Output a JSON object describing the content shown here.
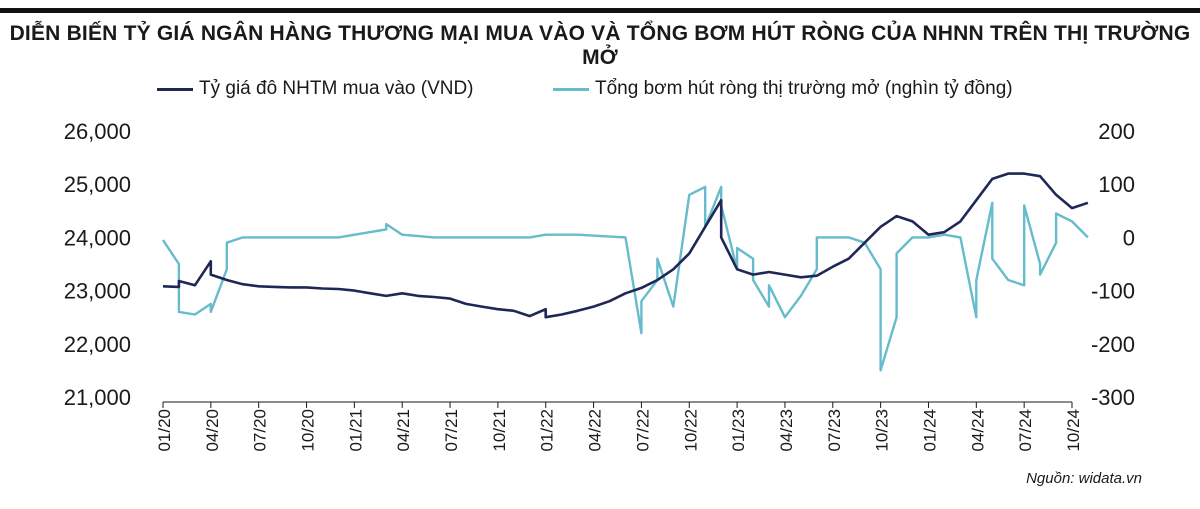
{
  "title": "DIỄN BIẾN TỶ GIÁ NGÂN HÀNG THƯƠNG MẠI MUA VÀO VÀ TỔNG BƠM HÚT RÒNG CỦA NHNN TRÊN THỊ TRƯỜNG MỞ",
  "source": "Nguồn: widata.vn",
  "colors": {
    "usd_rate": "#1f2855",
    "net_injection": "#66bccc",
    "topbar": "#111111"
  },
  "chart_data": {
    "type": "line",
    "legend_position": "top",
    "grid": false,
    "x_ticks": [
      "01/20",
      "04/20",
      "07/20",
      "10/20",
      "01/21",
      "04/21",
      "07/21",
      "10/21",
      "01/22",
      "04/22",
      "07/22",
      "10/22",
      "01/23",
      "04/23",
      "07/23",
      "10/23",
      "01/24",
      "04/24",
      "07/24",
      "10/24"
    ],
    "y_left": {
      "ticks": [
        "26,000",
        "25,000",
        "24,000",
        "23,000",
        "22,000",
        "21,000"
      ],
      "ylim": [
        21000,
        26000
      ]
    },
    "y_right": {
      "ticks": [
        "200",
        "100",
        "0",
        "-100",
        "-200",
        "-300"
      ],
      "ylim": [
        -300,
        200
      ]
    },
    "series": [
      {
        "name": "Tỷ giá đô NHTM mua vào  (VND)",
        "axis": "left",
        "color": "#1f2855",
        "x": [
          "01/2020",
          "02/2020",
          "02/2020",
          "03/2020",
          "04/2020",
          "04/2020",
          "05/2020",
          "06/2020",
          "07/2020",
          "08/2020",
          "09/2020",
          "10/2020",
          "11/2020",
          "12/2020",
          "01/2021",
          "02/2021",
          "03/2021",
          "04/2021",
          "05/2021",
          "06/2021",
          "07/2021",
          "08/2021",
          "09/2021",
          "10/2021",
          "11/2021",
          "12/2021",
          "01/2022",
          "01/2022",
          "02/2022",
          "03/2022",
          "04/2022",
          "05/2022",
          "06/2022",
          "07/2022",
          "08/2022",
          "09/2022",
          "10/2022",
          "11/2022",
          "12/2022",
          "12/2022",
          "01/2023",
          "02/2023",
          "03/2023",
          "04/2023",
          "05/2023",
          "06/2023",
          "07/2023",
          "08/2023",
          "09/2023",
          "10/2023",
          "11/2023",
          "12/2023",
          "01/2024",
          "02/2024",
          "03/2024",
          "04/2024",
          "05/2024",
          "06/2024",
          "07/2024",
          "08/2024",
          "09/2024",
          "10/2024",
          "11/2024"
        ],
        "y": [
          23080,
          23070,
          23180,
          23100,
          23550,
          23300,
          23200,
          23120,
          23080,
          23070,
          23060,
          23060,
          23040,
          23030,
          23000,
          22950,
          22900,
          22950,
          22900,
          22880,
          22850,
          22750,
          22700,
          22650,
          22620,
          22520,
          22650,
          22500,
          22550,
          22620,
          22700,
          22800,
          22950,
          23050,
          23200,
          23400,
          23700,
          24200,
          24700,
          24000,
          23400,
          23300,
          23350,
          23300,
          23250,
          23280,
          23450,
          23600,
          23900,
          24200,
          24400,
          24300,
          24050,
          24100,
          24300,
          24700,
          25100,
          25200,
          25200,
          25150,
          24800,
          24550,
          24650
        ]
      },
      {
        "name": "Tổng bơm hút ròng thị trường mở  (nghìn tỷ đồng)",
        "axis": "right",
        "color": "#66bccc",
        "x": [
          "01/2020",
          "02/2020",
          "02/2020",
          "03/2020",
          "04/2020",
          "04/2020",
          "05/2020",
          "05/2020",
          "06/2020",
          "09/2020",
          "12/2020",
          "02/2021",
          "03/2021",
          "03/2021",
          "04/2021",
          "06/2021",
          "09/2021",
          "12/2021",
          "01/2022",
          "03/2022",
          "06/2022",
          "06/2022",
          "07/2022",
          "07/2022",
          "08/2022",
          "08/2022",
          "09/2022",
          "10/2022",
          "11/2022",
          "11/2022",
          "12/2022",
          "12/2022",
          "01/2023",
          "01/2023",
          "02/2023",
          "02/2023",
          "03/2023",
          "03/2023",
          "04/2023",
          "05/2023",
          "06/2023",
          "06/2023",
          "07/2023",
          "08/2023",
          "09/2023",
          "10/2023",
          "10/2023",
          "11/2023",
          "11/2023",
          "12/2023",
          "01/2024",
          "02/2024",
          "03/2024",
          "04/2024",
          "04/2024",
          "05/2024",
          "05/2024",
          "06/2024",
          "07/2024",
          "07/2024",
          "08/2024",
          "08/2024",
          "09/2024",
          "09/2024",
          "10/2024",
          "11/2024"
        ],
        "y": [
          -5,
          -50,
          -140,
          -145,
          -125,
          -140,
          -60,
          -10,
          0,
          0,
          0,
          10,
          15,
          25,
          5,
          0,
          0,
          0,
          5,
          5,
          0,
          0,
          -180,
          -120,
          -80,
          -40,
          -130,
          80,
          95,
          20,
          95,
          60,
          -60,
          -20,
          -40,
          -80,
          -130,
          -90,
          -150,
          -110,
          -60,
          0,
          0,
          0,
          -10,
          -60,
          -250,
          -150,
          -30,
          0,
          0,
          5,
          0,
          -150,
          -80,
          65,
          -40,
          -80,
          -90,
          60,
          -50,
          -70,
          -10,
          45,
          30,
          0
        ]
      }
    ]
  }
}
